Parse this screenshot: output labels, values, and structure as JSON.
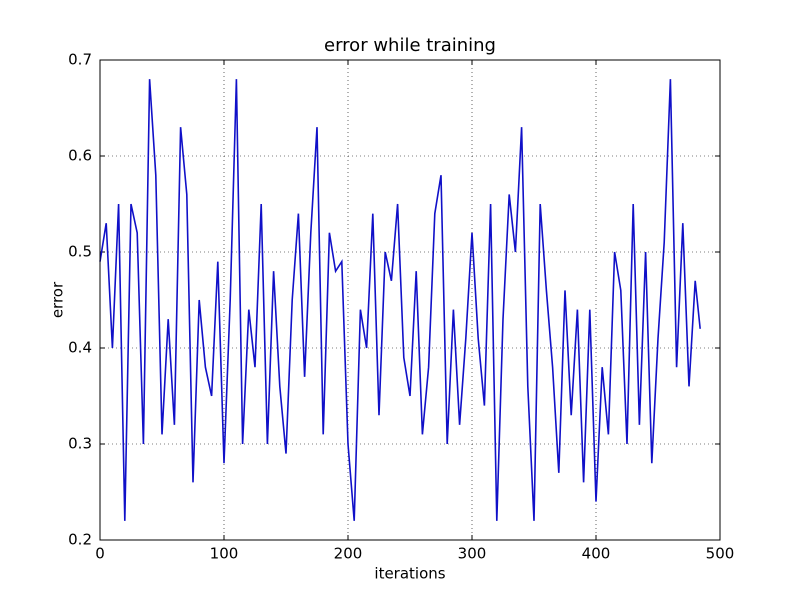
{
  "chart_data": {
    "type": "line",
    "title": "error while training",
    "x_label": "iterations",
    "y_label": "error",
    "series": [
      {
        "color": "#1010c8",
        "x": [
          0,
          5,
          10,
          15,
          20,
          25,
          30,
          35,
          40,
          45,
          50,
          55,
          60,
          65,
          70,
          75,
          80,
          85,
          90,
          95,
          100,
          105,
          110,
          115,
          120,
          125,
          130,
          135,
          140,
          145,
          150,
          155,
          160,
          165,
          170,
          175,
          180,
          185,
          190,
          195,
          200,
          205,
          210,
          215,
          220,
          225,
          230,
          235,
          240,
          245,
          250,
          255,
          260,
          265,
          270,
          275,
          280,
          285,
          290,
          295,
          300,
          305,
          310,
          315,
          320,
          325,
          330,
          335,
          340,
          345,
          350,
          355,
          360,
          365,
          370,
          375,
          380,
          385,
          390,
          395,
          400,
          405,
          410,
          415,
          420,
          425,
          430,
          435,
          440,
          445,
          450,
          455,
          460,
          465,
          470,
          475,
          480,
          484
        ],
        "values": [
          0.49,
          0.53,
          0.4,
          0.55,
          0.22,
          0.55,
          0.52,
          0.3,
          0.68,
          0.58,
          0.31,
          0.43,
          0.32,
          0.63,
          0.56,
          0.26,
          0.45,
          0.38,
          0.35,
          0.49,
          0.28,
          0.45,
          0.68,
          0.3,
          0.44,
          0.38,
          0.55,
          0.3,
          0.48,
          0.36,
          0.29,
          0.45,
          0.54,
          0.37,
          0.52,
          0.63,
          0.31,
          0.52,
          0.48,
          0.49,
          0.3,
          0.22,
          0.44,
          0.4,
          0.54,
          0.33,
          0.5,
          0.47,
          0.55,
          0.39,
          0.35,
          0.48,
          0.31,
          0.38,
          0.54,
          0.58,
          0.3,
          0.44,
          0.32,
          0.41,
          0.52,
          0.41,
          0.34,
          0.55,
          0.22,
          0.43,
          0.56,
          0.5,
          0.63,
          0.36,
          0.22,
          0.55,
          0.46,
          0.38,
          0.27,
          0.46,
          0.33,
          0.44,
          0.26,
          0.44,
          0.24,
          0.38,
          0.31,
          0.5,
          0.46,
          0.3,
          0.55,
          0.32,
          0.5,
          0.28,
          0.41,
          0.51,
          0.68,
          0.38,
          0.53,
          0.36,
          0.47,
          0.42
        ]
      }
    ],
    "xlim": [
      0,
      500
    ],
    "xticks": [
      0,
      100,
      200,
      300,
      400,
      500
    ],
    "ylim": [
      0.2,
      0.7
    ],
    "yticks": [
      0.2,
      0.3,
      0.4,
      0.5,
      0.6,
      0.7
    ],
    "grid": true
  }
}
